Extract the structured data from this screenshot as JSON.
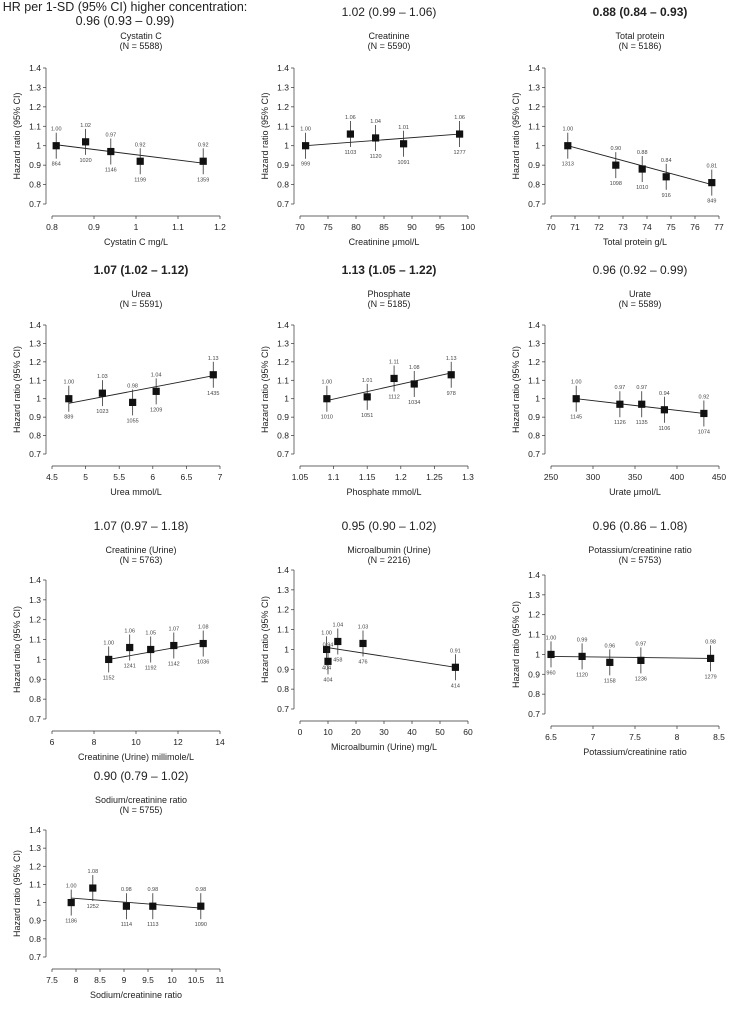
{
  "title": "HR per 1-SD (95% CI) higher concentration: 0.96 (0.93 – 0.99)",
  "ylabel": "Hazard ratio (95% CI)",
  "chart_data": [
    {
      "type": "scatter",
      "header": "",
      "header_bold": false,
      "name": "Cystatin C",
      "n_text": "(N = 5588)",
      "xlabel": "Cystatin C mg/L",
      "xlim": [
        0.8,
        1.2
      ],
      "xticks": [
        "0.8",
        "0.9",
        "1",
        "1.1",
        "1.2"
      ],
      "ylim": [
        0.7,
        1.4
      ],
      "yticks": [
        "0.7",
        "0.8",
        "0.9",
        "1",
        "1.1",
        "1.2",
        "1.3",
        "1.4"
      ],
      "x": [
        0.81,
        0.88,
        0.94,
        1.01,
        1.16
      ],
      "hr": [
        1.0,
        1.02,
        0.97,
        0.92,
        0.92
      ],
      "hr_labels": [
        "1.00",
        "1.02",
        "0.97",
        "0.92",
        "0.92"
      ],
      "counts": [
        "864",
        "1020",
        "1146",
        "1199",
        "1359"
      ],
      "trend": [
        1.005,
        0.91
      ]
    },
    {
      "type": "scatter",
      "header": "1.02 (0.99 – 1.06)",
      "header_bold": false,
      "name": "Creatinine",
      "n_text": "(N = 5590)",
      "xlabel": "Creatinine μmol/L",
      "xlim": [
        70,
        100
      ],
      "xticks": [
        "70",
        "75",
        "80",
        "85",
        "90",
        "95",
        "100"
      ],
      "ylim": [
        0.7,
        1.4
      ],
      "yticks": [
        "0.7",
        "0.8",
        "0.9",
        "1",
        "1.1",
        "1.2",
        "1.3",
        "1.4"
      ],
      "x": [
        71,
        79,
        83.5,
        88.5,
        98.5
      ],
      "hr": [
        1.0,
        1.06,
        1.04,
        1.01,
        1.06
      ],
      "hr_labels": [
        "1.00",
        "1.06",
        "1.04",
        "1.01",
        "1.06"
      ],
      "counts": [
        "999",
        "1103",
        "1120",
        "1091",
        "1277"
      ],
      "trend": [
        1.0,
        1.06
      ]
    },
    {
      "type": "scatter",
      "header": "0.88 (0.84 – 0.93)",
      "header_bold": true,
      "name": "Total protein",
      "n_text": "(N = 5186)",
      "xlabel": "Total protein g/L",
      "xlim": [
        70,
        77
      ],
      "xticks": [
        "70",
        "71",
        "72",
        "73",
        "74",
        "75",
        "76",
        "77"
      ],
      "ylim": [
        0.7,
        1.4
      ],
      "yticks": [
        "0.7",
        "0.8",
        "0.9",
        "1",
        "1.1",
        "1.2",
        "1.3",
        "1.4"
      ],
      "x": [
        70.7,
        72.7,
        73.8,
        74.8,
        76.7
      ],
      "hr": [
        1.0,
        0.9,
        0.88,
        0.84,
        0.81
      ],
      "hr_labels": [
        "1.00",
        "0.90",
        "0.88",
        "0.84",
        "0.81"
      ],
      "counts": [
        "1313",
        "1098",
        "1010",
        "916",
        "849"
      ],
      "trend": [
        1.0,
        0.8
      ]
    },
    {
      "type": "scatter",
      "header": "1.07 (1.02 – 1.12)",
      "header_bold": true,
      "name": "Urea",
      "n_text": "(N = 5591)",
      "xlabel": "Urea mmol/L",
      "xlim": [
        4.5,
        7
      ],
      "xticks": [
        "4.5",
        "5",
        "5.5",
        "6",
        "6.5",
        "7"
      ],
      "ylim": [
        0.7,
        1.4
      ],
      "yticks": [
        "0.7",
        "0.8",
        "0.9",
        "1",
        "1.1",
        "1.2",
        "1.3",
        "1.4"
      ],
      "x": [
        4.75,
        5.25,
        5.7,
        6.05,
        6.9
      ],
      "hr": [
        1.0,
        1.03,
        0.98,
        1.04,
        1.13
      ],
      "hr_labels": [
        "1.00",
        "1.03",
        "0.98",
        "1.04",
        "1.13"
      ],
      "counts": [
        "889",
        "1023",
        "1055",
        "1209",
        "1435"
      ],
      "trend": [
        0.975,
        1.125
      ]
    },
    {
      "type": "scatter",
      "header": "1.13 (1.05 – 1.22)",
      "header_bold": true,
      "name": "Phosphate",
      "n_text": "(N = 5185)",
      "xlabel": "Phosphate mmol/L",
      "xlim": [
        1.05,
        1.3
      ],
      "xticks": [
        "1.05",
        "1.1",
        "1.15",
        "1.2",
        "1.25",
        "1.3"
      ],
      "ylim": [
        0.7,
        1.4
      ],
      "yticks": [
        "0.7",
        "0.8",
        "0.9",
        "1",
        "1.1",
        "1.2",
        "1.3",
        "1.4"
      ],
      "x": [
        1.09,
        1.15,
        1.19,
        1.22,
        1.275
      ],
      "hr": [
        1.0,
        1.01,
        1.11,
        1.08,
        1.13
      ],
      "hr_labels": [
        "1.00",
        "1.01",
        "1.11",
        "1.08",
        "1.13"
      ],
      "counts": [
        "1010",
        "1051",
        "1112",
        "1034",
        "978"
      ],
      "trend": [
        0.99,
        1.14
      ]
    },
    {
      "type": "scatter",
      "header": "0.96 (0.92 – 0.99)",
      "header_bold": false,
      "name": "Urate",
      "n_text": "(N = 5589)",
      "xlabel": "Urate μmol/L",
      "xlim": [
        250,
        450
      ],
      "xticks": [
        "250",
        "300",
        "350",
        "400",
        "450"
      ],
      "ylim": [
        0.7,
        1.4
      ],
      "yticks": [
        "0.7",
        "0.8",
        "0.9",
        "1",
        "1.1",
        "1.2",
        "1.3",
        "1.4"
      ],
      "x": [
        280,
        332,
        358,
        385,
        432
      ],
      "hr": [
        1.0,
        0.97,
        0.97,
        0.94,
        0.92
      ],
      "hr_labels": [
        "1.00",
        "0.97",
        "0.97",
        "0.94",
        "0.92"
      ],
      "counts": [
        "1145",
        "1126",
        "1135",
        "1106",
        "1074"
      ],
      "trend": [
        1.0,
        0.92
      ]
    },
    {
      "type": "scatter",
      "header": "1.07 (0.97 – 1.18)",
      "header_bold": false,
      "name": "Creatinine (Urine)",
      "n_text": "(N = 5763)",
      "xlabel": "Creatinine (Urine) millimole/L",
      "xlim": [
        6,
        14
      ],
      "xticks": [
        "6",
        "8",
        "10",
        "12",
        "14"
      ],
      "ylim": [
        0.7,
        1.4
      ],
      "yticks": [
        "0.7",
        "0.8",
        "0.9",
        "1",
        "1.1",
        "1.2",
        "1.3",
        "1.4"
      ],
      "x": [
        8.7,
        9.7,
        10.7,
        11.8,
        13.2
      ],
      "hr": [
        1.0,
        1.06,
        1.05,
        1.07,
        1.08
      ],
      "hr_labels": [
        "1.00",
        "1.06",
        "1.05",
        "1.07",
        "1.08"
      ],
      "counts": [
        "1152",
        "1241",
        "1192",
        "1142",
        "1036"
      ],
      "trend": [
        1.0,
        1.085
      ]
    },
    {
      "type": "scatter",
      "header": "0.95 (0.90 – 1.02)",
      "header_bold": false,
      "name": "Microalbumin (Urine)",
      "n_text": "(N = 2216)",
      "xlabel": "Microalbumin (Urine) mg/L",
      "xlim": [
        0,
        60
      ],
      "xticks": [
        "0",
        "10",
        "20",
        "30",
        "40",
        "50",
        "60"
      ],
      "ylim": [
        0.7,
        1.4
      ],
      "yticks": [
        "0.7",
        "0.8",
        "0.9",
        "1",
        "1.1",
        "1.2",
        "1.3",
        "1.4"
      ],
      "x": [
        9.5,
        10,
        13.5,
        22.5,
        55.5
      ],
      "hr": [
        1.0,
        0.94,
        1.04,
        1.03,
        0.91
      ],
      "hr_labels": [
        "1.00",
        "0.94",
        "1.04",
        "1.03",
        "0.91"
      ],
      "counts": [
        "404",
        "404",
        "458",
        "476",
        "414"
      ],
      "trend": [
        1.01,
        0.91
      ]
    },
    {
      "type": "scatter",
      "header": "0.96 (0.86 – 1.08)",
      "header_bold": false,
      "name": "Potassium/creatinine ratio",
      "n_text": "(N = 5753)",
      "xlabel": "Potassium/creatinine ratio",
      "xlim": [
        6.5,
        8.5
      ],
      "xticks": [
        "6.5",
        "7",
        "7.5",
        "8",
        "8.5"
      ],
      "ylim": [
        0.7,
        1.4
      ],
      "yticks": [
        "0.7",
        "0.8",
        "0.9",
        "1",
        "1.1",
        "1.2",
        "1.3",
        "1.4"
      ],
      "x": [
        6.5,
        6.87,
        7.2,
        7.57,
        8.4
      ],
      "hr": [
        1.0,
        0.99,
        0.96,
        0.97,
        0.98
      ],
      "hr_labels": [
        "1.00",
        "0.99",
        "0.96",
        "0.97",
        "0.98"
      ],
      "counts": [
        "960",
        "1120",
        "1158",
        "1236",
        "1279"
      ],
      "trend": [
        0.99,
        0.98
      ]
    },
    {
      "type": "scatter",
      "header": "0.90 (0.79 – 1.02)",
      "header_bold": false,
      "name": "Sodium/creatinine ratio",
      "n_text": "(N = 5755)",
      "xlabel": "Sodium/creatinine ratio",
      "xlim": [
        7.5,
        11
      ],
      "xticks": [
        "7.5",
        "8",
        "8.5",
        "9",
        "9.5",
        "10",
        "10.5",
        "11"
      ],
      "ylim": [
        0.7,
        1.4
      ],
      "yticks": [
        "0.7",
        "0.8",
        "0.9",
        "1",
        "1.1",
        "1.2",
        "1.3",
        "1.4"
      ],
      "x": [
        7.9,
        8.35,
        9.05,
        9.6,
        10.6
      ],
      "hr": [
        1.0,
        1.08,
        0.98,
        0.98,
        0.98
      ],
      "hr_labels": [
        "1.00",
        "1.08",
        "0.98",
        "0.98",
        "0.98"
      ],
      "counts": [
        "1186",
        "1252",
        "1114",
        "1113",
        "1090"
      ],
      "trend": [
        1.025,
        0.97
      ]
    }
  ]
}
